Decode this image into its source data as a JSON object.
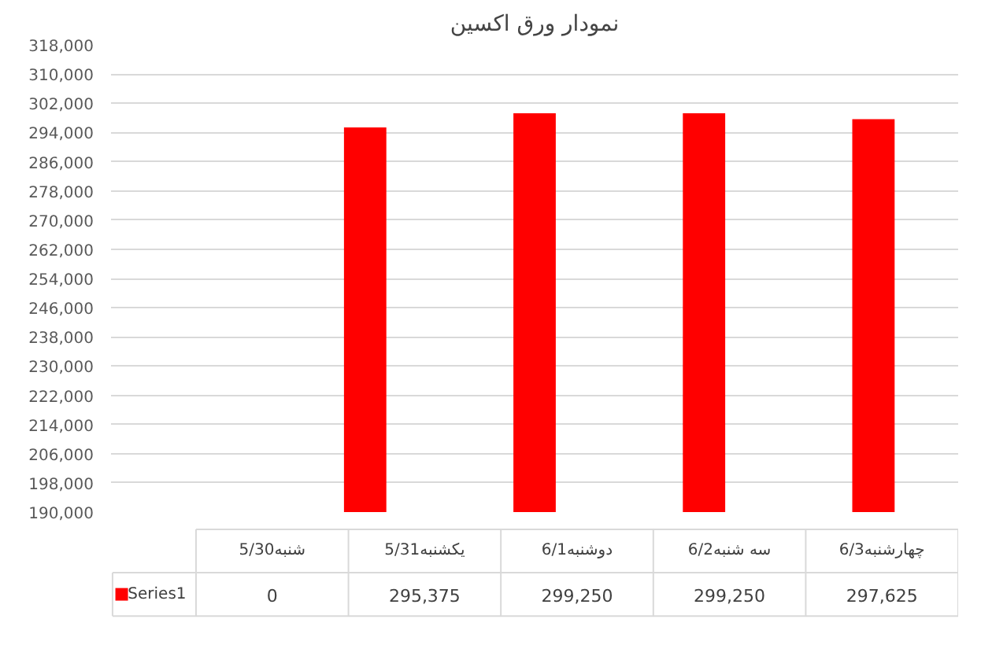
{
  "chart_data": {
    "type": "bar",
    "title": "نمودار ورق اکسین",
    "categories": [
      "شنبه5/30",
      "یکشنبه5/31",
      "دوشنبه6/1",
      "سه شنبه6/2",
      "چهارشنبه6/3"
    ],
    "series": [
      {
        "name": "Series1",
        "color": "#ff0000",
        "values": [
          null,
          295375,
          299250,
          299250,
          297625
        ],
        "value_labels": [
          "0",
          "295,375",
          "299,250",
          "299,250",
          "297,625"
        ]
      }
    ],
    "ylim": [
      190000,
      318000
    ],
    "yticks": [
      {
        "value": 190000,
        "label": "190,000"
      },
      {
        "value": 198000,
        "label": "198,000"
      },
      {
        "value": 206000,
        "label": "206,000"
      },
      {
        "value": 214000,
        "label": "214,000"
      },
      {
        "value": 222000,
        "label": "222,000"
      },
      {
        "value": 230000,
        "label": "230,000"
      },
      {
        "value": 238000,
        "label": "238,000"
      },
      {
        "value": 246000,
        "label": "246,000"
      },
      {
        "value": 254000,
        "label": "254,000"
      },
      {
        "value": 262000,
        "label": "262,000"
      },
      {
        "value": 270000,
        "label": "270,000"
      },
      {
        "value": 278000,
        "label": "278,000"
      },
      {
        "value": 286000,
        "label": "286,000"
      },
      {
        "value": 294000,
        "label": "294,000"
      },
      {
        "value": 302000,
        "label": "302,000"
      },
      {
        "value": 310000,
        "label": "310,000"
      },
      {
        "value": 318000,
        "label": "318,000"
      }
    ],
    "grid": "y"
  }
}
